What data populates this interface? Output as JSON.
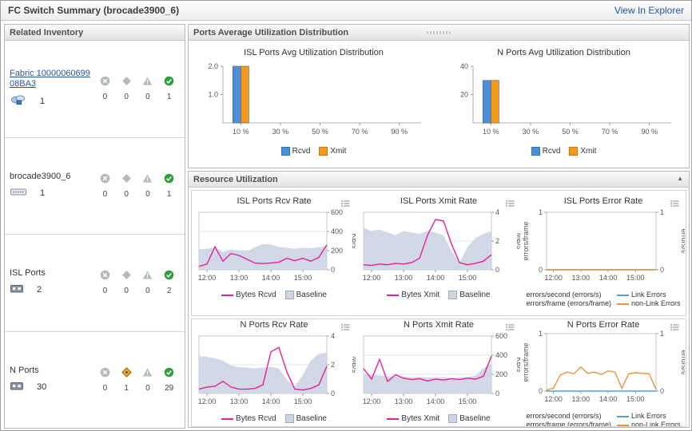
{
  "header": {
    "title": "FC Switch Summary (brocade3900_6)",
    "link": "View In Explorer"
  },
  "panels": {
    "ports_avg_title": "Ports Average Utilization Distribution",
    "resource_title": "Resource Utilization",
    "collapse_glyph": "▲"
  },
  "related_inventory": {
    "title": "Related Inventory",
    "rows": [
      {
        "label": "Fabric 1000006069908BA3",
        "count": "1",
        "statuses": [
          "0",
          "0",
          "0",
          "1"
        ]
      },
      {
        "label": "brocade3900_6",
        "count": "1",
        "statuses": [
          "0",
          "0",
          "0",
          "1"
        ]
      },
      {
        "label": "ISL Ports",
        "count": "2",
        "statuses": [
          "0",
          "0",
          "0",
          "2"
        ]
      },
      {
        "label": "N Ports",
        "count": "30",
        "statuses": [
          "0",
          "1",
          "0",
          "29"
        ]
      }
    ]
  },
  "colors": {
    "rcvd_blue": "#4a90d9",
    "xmit_orange": "#f5991e",
    "bytes_magenta": "#e6219b",
    "baseline_gray": "#cdd5e3",
    "link_err_blue": "#5b9bd5",
    "nonlink_err_orange": "#e8963c",
    "healthy_green": "#2f9e3f",
    "attention_orange": "#eda32f"
  },
  "chart_data": [
    {
      "type": "bar",
      "title": "ISL Ports Avg Utilization Distribution",
      "categories": [
        "10 %",
        "30 %",
        "50 %",
        "70 %",
        "90 %"
      ],
      "series": [
        {
          "name": "Rcvd",
          "color": "#4a90d9",
          "values": [
            2,
            0,
            0,
            0,
            0
          ]
        },
        {
          "name": "Xmit",
          "color": "#f5991e",
          "values": [
            2,
            0,
            0,
            0,
            0
          ]
        }
      ],
      "ylim": [
        0,
        2
      ],
      "yticks": [
        1,
        2
      ],
      "ytick_labels": [
        "1.0",
        "2.0"
      ],
      "legend": [
        {
          "type": "box",
          "color": "#4a90d9",
          "label": "Rcvd"
        },
        {
          "type": "box",
          "color": "#f5991e",
          "label": "Xmit"
        }
      ]
    },
    {
      "type": "bar",
      "title": "N Ports Avg Utilization Distribution",
      "categories": [
        "10 %",
        "30 %",
        "50 %",
        "70 %",
        "90 %"
      ],
      "series": [
        {
          "name": "Rcvd",
          "color": "#4a90d9",
          "values": [
            30,
            0,
            0,
            0,
            0
          ]
        },
        {
          "name": "Xmit",
          "color": "#f5991e",
          "values": [
            30,
            0,
            0,
            0,
            0
          ]
        }
      ],
      "ylim": [
        0,
        40
      ],
      "yticks": [
        20,
        40
      ],
      "ytick_labels": [
        "20",
        "40"
      ],
      "legend": [
        {
          "type": "box",
          "color": "#4a90d9",
          "label": "Rcvd"
        },
        {
          "type": "box",
          "color": "#f5991e",
          "label": "Xmit"
        }
      ]
    },
    {
      "type": "line",
      "title": "ISL Ports Rcv Rate",
      "x_ticks": [
        "12:00",
        "13:00",
        "14:00",
        "15:00"
      ],
      "xtick_idx": [
        1,
        5,
        9,
        13
      ],
      "right_axis": {
        "unit": "KB/s",
        "ylim": [
          0,
          600
        ],
        "ticks": [
          0,
          200,
          400,
          600
        ]
      },
      "series": [
        {
          "kind": "area",
          "name": "Baseline",
          "color": "#cdd5e3",
          "values": [
            215,
            220,
            230,
            185,
            210,
            200,
            195,
            235,
            270,
            265,
            240,
            230,
            220,
            230,
            225,
            235,
            245
          ]
        },
        {
          "kind": "line",
          "name": "Bytes Rcvd",
          "color": "#e6219b",
          "values": [
            35,
            60,
            240,
            90,
            170,
            150,
            110,
            70,
            65,
            70,
            80,
            120,
            95,
            120,
            90,
            130,
            260
          ]
        }
      ],
      "legend": [
        {
          "type": "line",
          "color": "#e6219b",
          "label": "Bytes Rcvd"
        },
        {
          "type": "box",
          "color": "#cdd5e3",
          "label": "Baseline"
        }
      ]
    },
    {
      "type": "line",
      "title": "ISL Ports Xmit Rate",
      "x_ticks": [
        "12:00",
        "13:00",
        "14:00",
        "15:00"
      ],
      "xtick_idx": [
        1,
        5,
        9,
        13
      ],
      "right_axis": {
        "unit": "MB/s",
        "ylim": [
          0,
          4
        ],
        "ticks": [
          0,
          2,
          4
        ]
      },
      "series": [
        {
          "kind": "area",
          "name": "Baseline",
          "color": "#cdd5e3",
          "values": [
            2.9,
            2.7,
            2.8,
            2.6,
            2.4,
            2.7,
            2.6,
            2.5,
            2.7,
            2.6,
            2.4,
            1.3,
            0.5,
            1.6,
            2.2,
            2.5,
            2.7
          ]
        },
        {
          "kind": "line",
          "name": "Bytes Xmit",
          "color": "#e6219b",
          "values": [
            0.35,
            0.3,
            0.4,
            0.35,
            0.45,
            0.4,
            0.5,
            0.8,
            2.4,
            3.5,
            3.4,
            1.8,
            0.5,
            0.35,
            0.45,
            0.6,
            1.05
          ]
        }
      ],
      "legend": [
        {
          "type": "line",
          "color": "#e6219b",
          "label": "Bytes Xmit"
        },
        {
          "type": "box",
          "color": "#cdd5e3",
          "label": "Baseline"
        }
      ]
    },
    {
      "type": "line",
      "title": "ISL Ports Error Rate",
      "x_ticks": [
        "12:00",
        "13:00",
        "14:00",
        "15:00"
      ],
      "xtick_idx": [
        1,
        5,
        9,
        13
      ],
      "left_axis": {
        "unit": "errors/frame",
        "ylim": [
          0,
          1
        ],
        "ticks": [
          0,
          1
        ]
      },
      "right_axis": {
        "unit": "errors/s",
        "ylim": [
          0,
          1
        ],
        "ticks": [
          0,
          1
        ]
      },
      "series": [
        {
          "kind": "line",
          "name": "Link Errors",
          "color": "#5b9bd5",
          "values": [
            0,
            0,
            0,
            0,
            0,
            0,
            0,
            0,
            0,
            0,
            0,
            0,
            0,
            0,
            0,
            0,
            0
          ]
        },
        {
          "kind": "line",
          "name": "non-Link Errors",
          "color": "#e8963c",
          "values": [
            0,
            0,
            0,
            0,
            0,
            0,
            0,
            0,
            0,
            0,
            0,
            0,
            0,
            0,
            0,
            0,
            0
          ]
        }
      ],
      "legend": [
        {
          "type": "text",
          "label": "errors/second (errors/s)"
        },
        {
          "type": "line",
          "color": "#5b9bd5",
          "label": "Link Errors"
        },
        {
          "type": "text",
          "label": "errors/frame (errors/frame)"
        },
        {
          "type": "line",
          "color": "#e8963c",
          "label": "non-Link Errors"
        }
      ],
      "legend_grid": true
    },
    {
      "type": "line",
      "title": "N Ports Rcv Rate",
      "x_ticks": [
        "12:00",
        "13:00",
        "14:00",
        "15:00"
      ],
      "xtick_idx": [
        1,
        5,
        9,
        13
      ],
      "right_axis": {
        "unit": "MB/s",
        "ylim": [
          0,
          4
        ],
        "ticks": [
          0,
          2,
          4
        ]
      },
      "series": [
        {
          "kind": "area",
          "name": "Baseline",
          "color": "#cdd5e3",
          "values": [
            2.6,
            2.55,
            2.45,
            2.3,
            1.95,
            1.85,
            1.8,
            1.75,
            1.8,
            1.85,
            1.75,
            0.95,
            0.5,
            1.3,
            2.3,
            2.75,
            2.85
          ]
        },
        {
          "kind": "line",
          "name": "Bytes Rcvd",
          "color": "#e6219b",
          "values": [
            0.3,
            0.45,
            0.5,
            0.85,
            0.45,
            0.3,
            0.3,
            0.35,
            0.6,
            2.9,
            3.2,
            1.5,
            0.3,
            0.25,
            0.35,
            0.6,
            1.9
          ]
        }
      ],
      "legend": [
        {
          "type": "line",
          "color": "#e6219b",
          "label": "Bytes Rcvd"
        },
        {
          "type": "box",
          "color": "#cdd5e3",
          "label": "Baseline"
        }
      ]
    },
    {
      "type": "line",
      "title": "N Ports Xmit Rate",
      "x_ticks": [
        "12:00",
        "13:00",
        "14:00",
        "15:00"
      ],
      "xtick_idx": [
        1,
        5,
        9,
        13
      ],
      "right_axis": {
        "unit": "KB/s",
        "ylim": [
          0,
          600
        ],
        "ticks": [
          0,
          200,
          400,
          600
        ]
      },
      "series": [
        {
          "kind": "area",
          "name": "Baseline",
          "color": "#cdd5e3",
          "values": [
            205,
            195,
            185,
            180,
            175,
            172,
            168,
            172,
            166,
            170,
            166,
            162,
            166,
            172,
            185,
            265,
            315
          ]
        },
        {
          "kind": "line",
          "name": "Bytes Xmit",
          "color": "#e6219b",
          "values": [
            260,
            150,
            355,
            125,
            195,
            160,
            145,
            155,
            130,
            150,
            140,
            155,
            145,
            160,
            150,
            180,
            390
          ]
        }
      ],
      "legend": [
        {
          "type": "line",
          "color": "#e6219b",
          "label": "Bytes Xmit"
        },
        {
          "type": "box",
          "color": "#cdd5e3",
          "label": "Baseline"
        }
      ]
    },
    {
      "type": "line",
      "title": "N Ports Error Rate",
      "x_ticks": [
        "12:00",
        "13:00",
        "14:00",
        "15:00"
      ],
      "xtick_idx": [
        1,
        5,
        9,
        13
      ],
      "left_axis": {
        "unit": "errors/frame",
        "ylim": [
          0,
          1
        ],
        "ticks": [
          0,
          1
        ]
      },
      "right_axis": {
        "unit": "errors/s",
        "ylim": [
          0,
          1
        ],
        "ticks": [
          0,
          1
        ]
      },
      "series": [
        {
          "kind": "line",
          "name": "Link Errors",
          "color": "#5b9bd5",
          "values": [
            0,
            0,
            0,
            0,
            0,
            0,
            0,
            0,
            0,
            0,
            0,
            0,
            0,
            0,
            0,
            0,
            0
          ]
        },
        {
          "kind": "line",
          "name": "non-Link Errors",
          "color": "#e8963c",
          "values": [
            0.02,
            0.05,
            0.28,
            0.33,
            0.3,
            0.42,
            0.31,
            0.33,
            0.29,
            0.35,
            0.33,
            0.05,
            0.3,
            0.32,
            0.31,
            0.3,
            0.03
          ]
        }
      ],
      "legend": [
        {
          "type": "text",
          "label": "errors/second (errors/s)"
        },
        {
          "type": "line",
          "color": "#5b9bd5",
          "label": "Link Errors"
        },
        {
          "type": "text",
          "label": "errors/frame (errors/frame)"
        },
        {
          "type": "line",
          "color": "#e8963c",
          "label": "non-Link Errors"
        }
      ],
      "legend_grid": true
    }
  ]
}
